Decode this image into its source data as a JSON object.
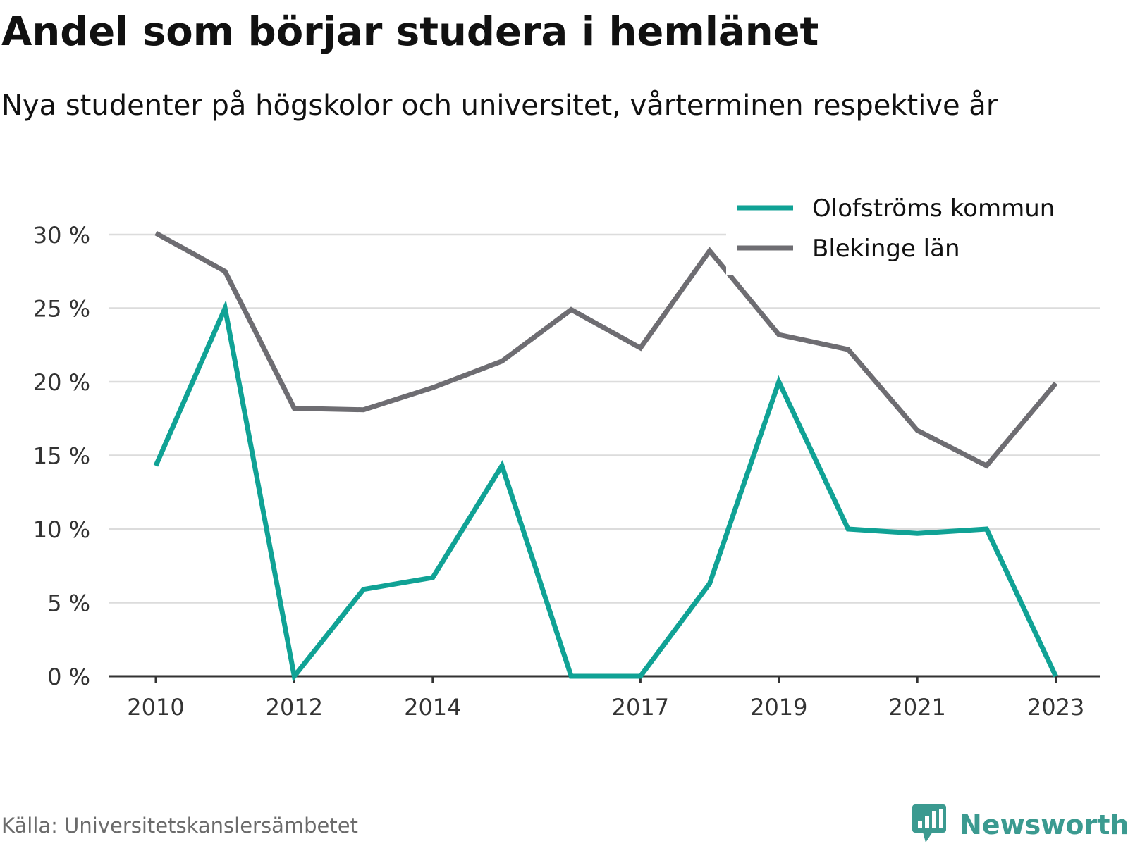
{
  "title": "Andel som börjar studera i hemlänet",
  "subtitle": "Nya studenter på högskolor och universitet, vårterminen respektive år",
  "source": "Källa: Universitetskanslersämbetet",
  "brand": {
    "name": "Newsworthy",
    "icon": "bar-chart-speech-bubble-icon",
    "color": "#3b9a90"
  },
  "chart_data": {
    "type": "line",
    "x": [
      2010,
      2011,
      2012,
      2013,
      2014,
      2015,
      2016,
      2017,
      2018,
      2019,
      2020,
      2021,
      2022,
      2023
    ],
    "x_tick_labels": [
      "2010",
      "2012",
      "2014",
      "2017",
      "2019",
      "2021",
      "2023"
    ],
    "y_tick_labels": [
      "0 %",
      "5 %",
      "10 %",
      "15 %",
      "20 %",
      "25 %",
      "30 %"
    ],
    "y_ticks": [
      0,
      5,
      10,
      15,
      20,
      25,
      30
    ],
    "ylim": [
      0,
      30
    ],
    "grid": true,
    "legend_position": "top-right",
    "series": [
      {
        "name": "Olofströms kommun",
        "color": "#10a295",
        "values": [
          14.3,
          25.0,
          0.0,
          5.9,
          6.7,
          14.3,
          0.0,
          0.0,
          6.3,
          20.0,
          10.0,
          9.7,
          10.0,
          0.0
        ]
      },
      {
        "name": "Blekinge län",
        "color": "#6e6d72",
        "values": [
          30.1,
          27.5,
          18.2,
          18.1,
          19.6,
          21.4,
          24.9,
          22.3,
          28.9,
          23.2,
          22.2,
          16.7,
          14.3,
          19.9
        ]
      }
    ]
  }
}
